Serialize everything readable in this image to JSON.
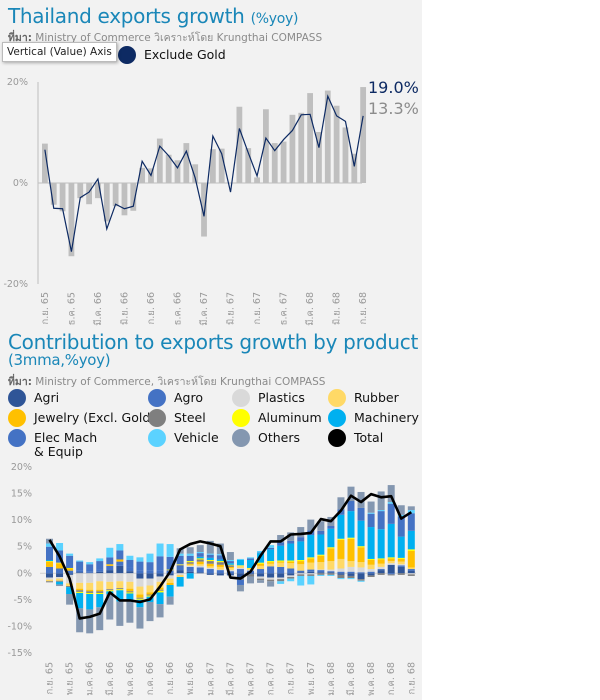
{
  "top_chart": {
    "title": "Thailand exports growth ",
    "title_unit": "(%yoy)",
    "source_label": "ที่มา:",
    "source": " Ministry of Commerce วิเคราะห์โดย Krungthai COMPASS",
    "tooltip": "Vertical (Value) Axis",
    "latest_total_label": "19.0%",
    "latest_ex_gold_label": "13.3%"
  },
  "bottom_chart": {
    "title": "Contribution to exports growth by product",
    "subtitle": "(3mma,%yoy)",
    "source_label": "ที่มา:",
    "source": " Ministry of Commerce, วิเคราะห์โดย Krungthai COMPASS"
  },
  "chart_data": [
    {
      "type": "bar+line",
      "title": "Thailand exports growth (%yoy)",
      "ylim": [
        -20,
        20
      ],
      "yticks": [
        "20%",
        "0%",
        "-20%"
      ],
      "ytick_values": [
        20,
        0,
        -20
      ],
      "grid": false,
      "legend": "top-left",
      "xtick_labels": [
        "ก.ย. 65",
        "ธ.ค. 65",
        "มี.ค. 66",
        "มิ.ย. 66",
        "ก.ย. 66",
        "ธ.ค. 66",
        "มี.ค. 67",
        "มิ.ย. 67",
        "ก.ย. 67",
        "ธ.ค. 67",
        "มี.ค. 68",
        "มิ.ย. 68",
        "ก.ย. 68"
      ],
      "xtick_every": 3,
      "series": [
        {
          "kind": "bar",
          "color": "#bfbfbf",
          "values": [
            7.8,
            -4.3,
            -5.6,
            -14.5,
            -3.0,
            -4.2,
            -3.0,
            -7.6,
            -4.6,
            -6.4,
            -5.5,
            3.0,
            2.9,
            8.8,
            5.6,
            4.5,
            7.9,
            3.7,
            -10.6,
            6.7,
            6.8,
            0,
            15.1,
            6.9,
            1.1,
            14.6,
            7.9,
            8.2,
            13.5,
            13.9,
            17.8,
            10.1,
            18.3,
            15.3,
            11.0,
            5.8,
            19.0
          ]
        },
        {
          "kind": "line",
          "name": "Exclude Gold",
          "color": "#0d2a63",
          "values": [
            6.6,
            -5.0,
            -5.1,
            -13.6,
            -2.9,
            -1.8,
            0.8,
            -9.1,
            -4.2,
            -5.1,
            -4.6,
            4.3,
            1.5,
            7.3,
            5.4,
            3.0,
            6.3,
            1.0,
            -6.6,
            9.3,
            5.8,
            -1.8,
            10.8,
            6.0,
            1.4,
            8.9,
            6.4,
            8.6,
            10.4,
            13.5,
            13.6,
            7.0,
            17.2,
            13.3,
            12.2,
            3.3,
            13.3
          ]
        }
      ]
    },
    {
      "type": "stacked-bar+line",
      "title": "Contribution to exports growth by product (3mma,%yoy)",
      "ylim": [
        -15,
        20
      ],
      "yticks": [
        "20%",
        "15%",
        "10%",
        "5%",
        "0%",
        "-5%",
        "-10%",
        "-15%"
      ],
      "ytick_values": [
        20,
        15,
        10,
        5,
        0,
        -5,
        -10,
        -15
      ],
      "grid": false,
      "legend": "top",
      "xtick_labels": [
        "ก.ย. 65",
        "พ.ย. 65",
        "ม.ค. 66",
        "มี.ค. 66",
        "พ.ค. 66",
        "ก.ค. 66",
        "ก.ย. 66",
        "พ.ย. 66",
        "ม.ค. 67",
        "มี.ค. 67",
        "พ.ค. 67",
        "ก.ค. 67",
        "ก.ย. 67",
        "พ.ย. 67",
        "ม.ค. 68",
        "มี.ค. 68",
        "พ.ค. 68",
        "ก.ค. 68",
        "ก.ย. 68"
      ],
      "xtick_every": 2,
      "series": [
        {
          "name": "Agri",
          "color": "#2f5597",
          "values": [
            -0.8,
            -0.7,
            -0.3,
            0.2,
            0.1,
            0.3,
            0.6,
            1.4,
            0.4,
            -1,
            -1,
            -0.6,
            -0.4,
            0.6,
            0.3,
            0.2,
            -0.3,
            -0.4,
            -0.4,
            -0.9,
            -0.2,
            -0.6,
            -0.8,
            -0.8,
            -0.4,
            0.2,
            0.3,
            0.2,
            0.2,
            -0.3,
            -0.5,
            -1.1,
            -0.4,
            0.6,
            1.6,
            1.2,
            0.5
          ]
        },
        {
          "name": "Agro",
          "color": "#4472c4",
          "values": [
            1.2,
            0.9,
            0.5,
            0.4,
            0.3,
            0.5,
            0.8,
            0.8,
            0.6,
            0.6,
            0.5,
            0.6,
            0.5,
            0.8,
            0.9,
            0.9,
            0.8,
            0.6,
            0.4,
            0.8,
            0.5,
            0.8,
            1.3,
            1.2,
            0.9,
            0.3,
            0.4,
            0.4,
            0.2,
            0.3,
            0.3,
            0.2,
            0.3,
            0.2,
            -0.2,
            0.3,
            0.3
          ]
        },
        {
          "name": "Plastics",
          "color": "#d9d9d9",
          "values": [
            -0.4,
            -0.3,
            -1.6,
            -1.8,
            -1.8,
            -1.5,
            -1.6,
            -1.5,
            -1.6,
            -1.5,
            -1.3,
            -1,
            -0.6,
            -0.3,
            0.2,
            0.3,
            0.2,
            0.1,
            0.2,
            0.2,
            0.1,
            -0.4,
            -0.4,
            -0.3,
            -0.3,
            -0.2,
            -0.2,
            0.1,
            0.3,
            0.6,
            0.9,
            0.9,
            0.5,
            0.4,
            0.3,
            0.2,
            -0.2
          ]
        },
        {
          "name": "Rubber",
          "color": "#ffd966",
          "values": [
            -0.3,
            -0.4,
            -0.5,
            -1.1,
            -1.3,
            -1.6,
            -1.4,
            -1.3,
            -1.3,
            -1.5,
            -1.3,
            -1.1,
            -0.8,
            -0.4,
            0.2,
            0.3,
            0.3,
            0.5,
            0.4,
            0.4,
            0.3,
            0.6,
            0.5,
            0.8,
            1,
            1.2,
            1.3,
            1.4,
            1.6,
            1.8,
            1.1,
            1,
            0.8,
            0.6,
            0.4,
            0.5,
            0.3
          ]
        },
        {
          "name": "Jewelry (Excl. Gold)",
          "color": "#ffc000",
          "values": [
            1,
            1,
            0.4,
            -0.3,
            -0.3,
            -0.3,
            0.3,
            0.4,
            -0.5,
            -0.6,
            -0.4,
            -0.4,
            -0.4,
            0,
            0.2,
            0.5,
            0.5,
            0.4,
            0.2,
            0,
            0,
            0.4,
            0.3,
            0.2,
            0.3,
            0.6,
            0.8,
            1.2,
            2.4,
            3.6,
            4.2,
            2.8,
            0.9,
            0.8,
            0.5,
            0.5,
            3.1
          ]
        },
        {
          "name": "Steel",
          "color": "#7f7f7f",
          "values": [
            -0.2,
            -0.2,
            -0.2,
            -0.3,
            -0.3,
            -0.3,
            -0.2,
            -0.2,
            -0.2,
            -0.2,
            -0.2,
            -0.2,
            0.1,
            0.2,
            0.3,
            0.4,
            0.5,
            0.5,
            0.3,
            -0.3,
            -0.4,
            -0.3,
            -0.3,
            -0.4,
            -0.3,
            -0.3,
            -0.3,
            -0.3,
            -0.3,
            -0.6,
            -0.4,
            -0.3,
            -0.3,
            -0.3,
            -0.2,
            -0.3,
            -0.3
          ]
        },
        {
          "name": "Aluminum",
          "color": "#ffff00",
          "values": [
            0.1,
            0.1,
            0.1,
            -0.2,
            -0.2,
            -0.2,
            -0.2,
            -0.2,
            -0.2,
            -0.2,
            -0.2,
            -0.3,
            0.1,
            0.1,
            0.2,
            0.2,
            0.2,
            0.2,
            0.1,
            0.1,
            0.1,
            0.2,
            0.2,
            0.2,
            0.2,
            0.2,
            0.2,
            0.2,
            0.2,
            0.2,
            0.2,
            0.2,
            0.2,
            0.2,
            0.2,
            0.2,
            0.3
          ]
        },
        {
          "name": "Machinery",
          "color": "#00b0f0",
          "values": [
            0.2,
            -0.5,
            -1.3,
            -2.9,
            -2.9,
            -2.5,
            -0.5,
            -2.1,
            -1.2,
            -1.4,
            -1,
            -2.2,
            -2.2,
            -1.8,
            -1,
            0.3,
            0.4,
            0.3,
            0.3,
            1,
            1.5,
            1.8,
            2.2,
            2.8,
            3.2,
            3.5,
            4.2,
            3.8,
            3.5,
            4.5,
            5,
            4.8,
            6,
            5.5,
            6.3,
            4,
            3.5
          ]
        },
        {
          "name": "Elec Mach & Equip",
          "color": "#4472c4",
          "values": [
            2.5,
            2.3,
            2.3,
            1.6,
            1.3,
            1.5,
            1.3,
            1.7,
            1.5,
            1.6,
            1.6,
            2.6,
            2.4,
            1.6,
            1,
            0.7,
            0.6,
            0.8,
            0.4,
            -1,
            0.3,
            0.1,
            0.3,
            0.6,
            0.5,
            0.8,
            0.9,
            0.7,
            0.5,
            1,
            1.9,
            2.4,
            2.5,
            3.4,
            3.8,
            3.8,
            3.3
          ]
        },
        {
          "name": "Vehicle",
          "color": "#5bd2ff",
          "values": [
            0.6,
            1.4,
            0.4,
            0.2,
            0.4,
            0.5,
            1.8,
            1.2,
            0.8,
            0.8,
            1.6,
            2.4,
            2.4,
            0.4,
            0.4,
            0.2,
            0.2,
            0.2,
            0.2,
            0.2,
            0.2,
            0.3,
            0.5,
            -0.5,
            -0.5,
            -1.8,
            -1.6,
            -0.2,
            -0.2,
            -0.2,
            -0.2,
            -0.2,
            0.2,
            0.2,
            0.3,
            0.3,
            0.6
          ]
        },
        {
          "name": "Others",
          "color": "#8497b0",
          "values": [
            0.9,
            -0.3,
            -2,
            -4.5,
            -4.5,
            -4.3,
            -4.8,
            -4.6,
            -4.3,
            -4,
            -3.6,
            -2.5,
            -1.5,
            1,
            1.2,
            1.3,
            2.4,
            2,
            1.5,
            -1.2,
            -1.3,
            -0.5,
            -1,
            1.4,
            1.6,
            1.9,
            2,
            1.8,
            1.7,
            2.3,
            2.7,
            3,
            2.1,
            3.5,
            3.2,
            1.8,
            0.7
          ]
        },
        {
          "name": "Total",
          "color": "#000000",
          "kind": "line",
          "values": [
            6.3,
            3.2,
            -1,
            -8.5,
            -8.2,
            -7.6,
            -3.6,
            -5.1,
            -5.1,
            -5.4,
            -4.9,
            -2.5,
            0.3,
            4.5,
            5.5,
            6.0,
            5.6,
            5.1,
            -0.8,
            -1.0,
            0.3,
            3.3,
            6.0,
            6.0,
            7.3,
            7.4,
            7.6,
            10.2,
            9.8,
            11.8,
            14.6,
            13.4,
            14.9,
            14.3,
            14.5,
            10.3,
            11.5
          ]
        }
      ]
    }
  ]
}
